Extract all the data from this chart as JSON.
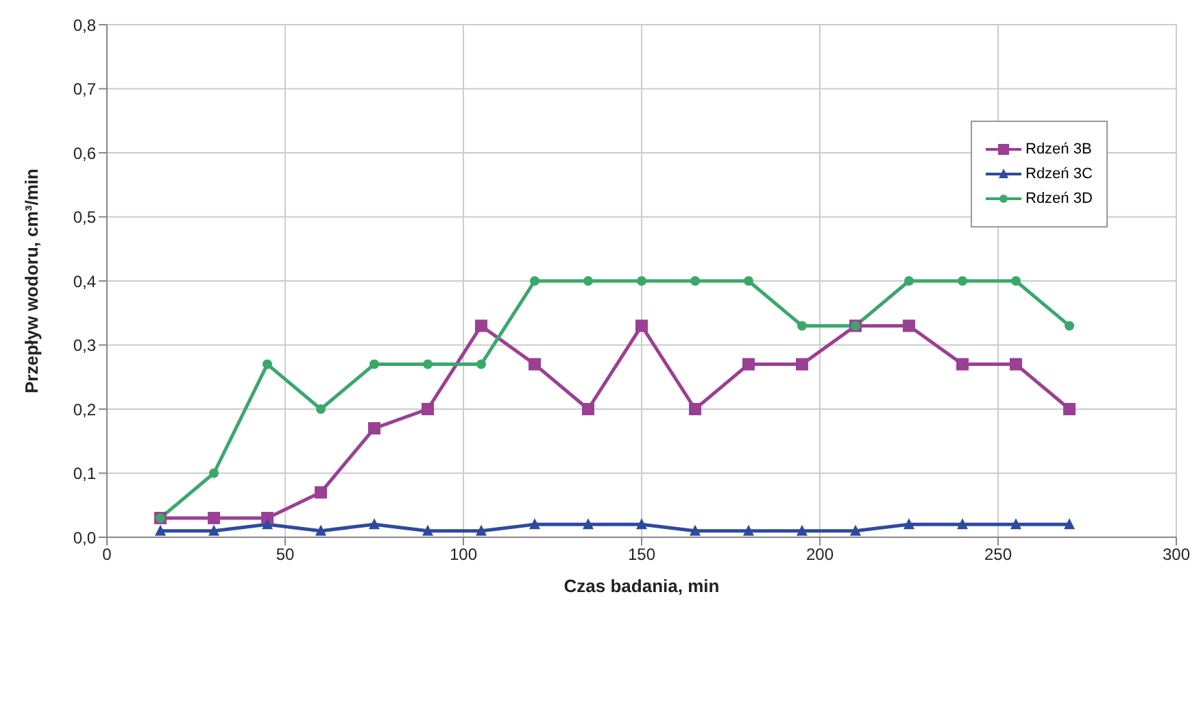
{
  "chart_data": {
    "type": "line",
    "xlabel": "Czas badania, min",
    "ylabel": "Przepływ wodoru, cm³/min",
    "x": [
      15,
      30,
      45,
      60,
      75,
      90,
      105,
      120,
      135,
      150,
      165,
      180,
      195,
      210,
      225,
      240,
      255,
      270
    ],
    "series": [
      {
        "name": "Rdzeń 3B",
        "color": "#9b3f94",
        "marker": "square",
        "values": [
          0.03,
          0.03,
          0.03,
          0.07,
          0.17,
          0.2,
          0.33,
          0.27,
          0.2,
          0.33,
          0.2,
          0.27,
          0.27,
          0.33,
          0.33,
          0.27,
          0.27,
          0.2
        ]
      },
      {
        "name": "Rdzeń 3C",
        "color": "#2e4a9e",
        "marker": "triangle",
        "values": [
          0.01,
          0.01,
          0.02,
          0.01,
          0.02,
          0.01,
          0.01,
          0.02,
          0.02,
          0.02,
          0.01,
          0.01,
          0.01,
          0.01,
          0.02,
          0.02,
          0.02,
          0.02
        ]
      },
      {
        "name": "Rdzeń 3D",
        "color": "#3aa86b",
        "marker": "circle",
        "values": [
          0.03,
          0.1,
          0.27,
          0.2,
          0.27,
          0.27,
          0.27,
          0.4,
          0.4,
          0.4,
          0.4,
          0.4,
          0.33,
          0.33,
          0.4,
          0.4,
          0.4,
          0.33
        ]
      }
    ],
    "xlim": [
      0,
      300
    ],
    "xticks": [
      0,
      50,
      100,
      150,
      200,
      250,
      300
    ],
    "ylim": [
      0,
      0.8
    ],
    "yticks": [
      {
        "value": 0,
        "label": "0,0"
      },
      {
        "value": 0.1,
        "label": "0,1"
      },
      {
        "value": 0.2,
        "label": "0,2"
      },
      {
        "value": 0.3,
        "label": "0,3"
      },
      {
        "value": 0.4,
        "label": "0,4"
      },
      {
        "value": 0.5,
        "label": "0,5"
      },
      {
        "value": 0.6,
        "label": "0,6"
      },
      {
        "value": 0.7,
        "label": "0,7"
      },
      {
        "value": 0.8,
        "label": "0,8"
      }
    ],
    "grid": true,
    "legend": "top right",
    "line_style": "solid"
  }
}
